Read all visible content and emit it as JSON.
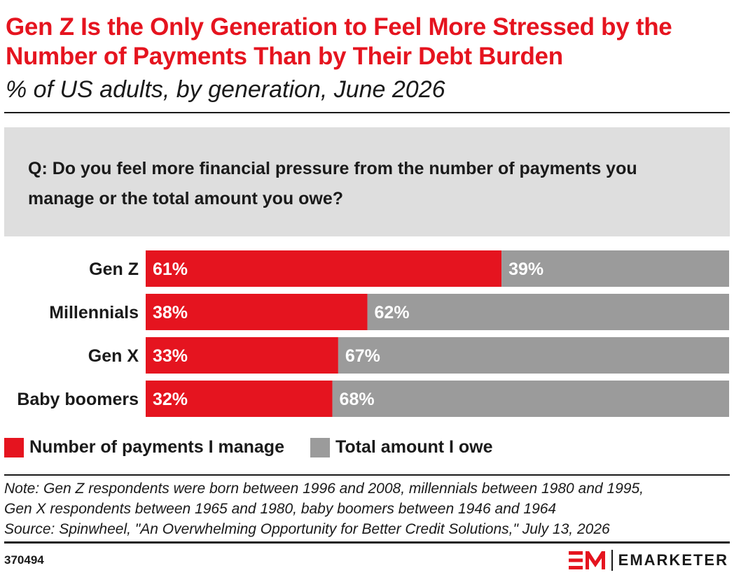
{
  "header": {
    "title": "Gen Z Is the Only Generation to Feel More Stressed by the Number of Payments Than by Their Debt Burden",
    "subtitle": "% of US adults, by generation, June 2026"
  },
  "question": "Q: Do you feel more financial pressure from the number of payments you manage or the total amount you owe?",
  "chart_data": {
    "type": "bar",
    "orientation": "horizontal",
    "stacked": true,
    "categories": [
      "Gen Z",
      "Millennials",
      "Gen X",
      "Baby boomers"
    ],
    "series": [
      {
        "name": "Number of payments I manage",
        "values": [
          61,
          38,
          33,
          32
        ],
        "labels": [
          "61%",
          "38%",
          "33%",
          "32%"
        ],
        "color": "#e5141f"
      },
      {
        "name": "Total amount I owe",
        "values": [
          39,
          62,
          67,
          68
        ],
        "labels": [
          "39%",
          "62%",
          "67%",
          "68%"
        ],
        "color": "#9b9b9b"
      }
    ],
    "xlim": [
      0,
      100
    ],
    "grid": false,
    "legend_position": "bottom-left"
  },
  "notes": {
    "line1": "Note: Gen Z respondents were born between 1996 and 2008, millennials between 1980 and 1995,",
    "line2": "Gen X respondents between 1965 and 1980, baby boomers between 1946 and 1964",
    "source": "Source: Spinwheel, \"An Overwhelming Opportunity for Better Credit Solutions,\" July 13, 2026"
  },
  "footer": {
    "chart_id": "370494",
    "brand_name": "EMARKETER",
    "brand_color": "#e5141f"
  }
}
